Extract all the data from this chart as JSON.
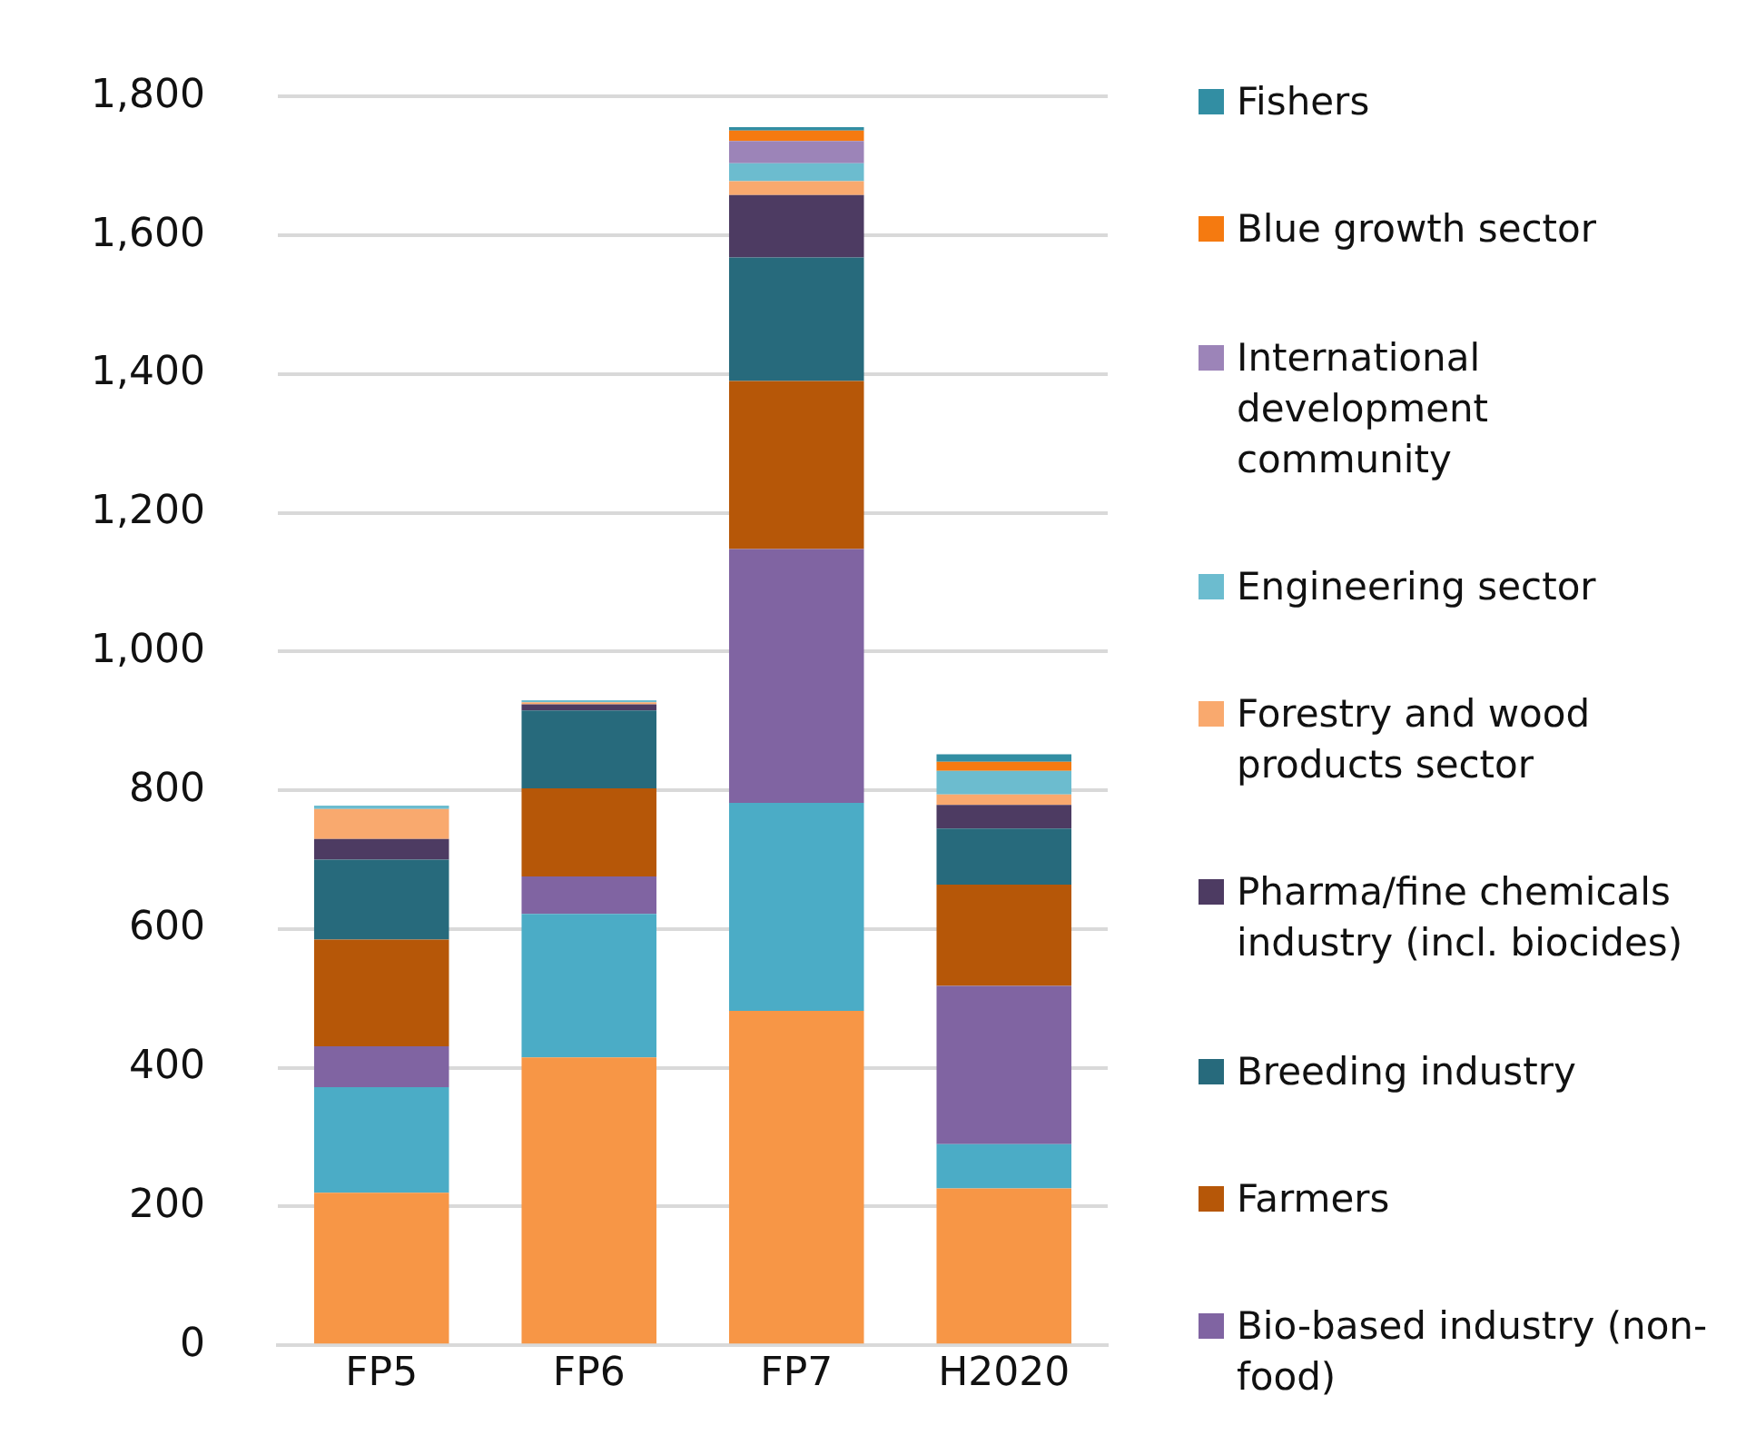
{
  "chart_data": {
    "type": "bar",
    "stacked": true,
    "categories": [
      "FP5",
      "FP6",
      "FP7",
      "H2020"
    ],
    "series": [
      {
        "color": "#f79646",
        "values": [
          220,
          415,
          482,
          226
        ]
      },
      {
        "color": "#4bacc6",
        "values": [
          152,
          207,
          300,
          64
        ]
      },
      {
        "name": "Bio-based industry (non-food)",
        "color": "#8064a2",
        "values": [
          59,
          54,
          366,
          228
        ]
      },
      {
        "name": "Farmers",
        "color": "#b65708",
        "values": [
          154,
          127,
          242,
          146
        ]
      },
      {
        "name": "Breeding industry",
        "color": "#276a7c",
        "values": [
          115,
          112,
          178,
          81
        ]
      },
      {
        "name": "Pharma/fine chemicals industry (incl. biocides)",
        "color": "#4d3b62",
        "values": [
          30,
          9,
          90,
          34
        ]
      },
      {
        "name": "Forestry and wood products sector",
        "color": "#f9a96e",
        "values": [
          43,
          3,
          20,
          15
        ]
      },
      {
        "name": "Engineering sector",
        "color": "#6cbccf",
        "values": [
          5,
          3,
          26,
          34
        ]
      },
      {
        "name": "International development community",
        "color": "#9c84b8",
        "values": [
          0,
          0,
          32,
          0
        ]
      },
      {
        "name": "Blue growth sector",
        "color": "#f57a10",
        "values": [
          0,
          0,
          15,
          13
        ]
      },
      {
        "name": "Fishers",
        "color": "#328ea3",
        "values": [
          0,
          0,
          5,
          11
        ]
      }
    ],
    "ylim": [
      0,
      1800
    ],
    "yticks": [
      0,
      200,
      400,
      600,
      800,
      {
        "value": 1000,
        "label": "1,000"
      },
      {
        "value": 1200,
        "label": "1,200"
      },
      {
        "value": 1400,
        "label": "1,400"
      },
      {
        "value": 1600,
        "label": "1,600"
      },
      {
        "value": 1800,
        "label": "1,800"
      }
    ],
    "grid": "y",
    "legend": "right"
  }
}
